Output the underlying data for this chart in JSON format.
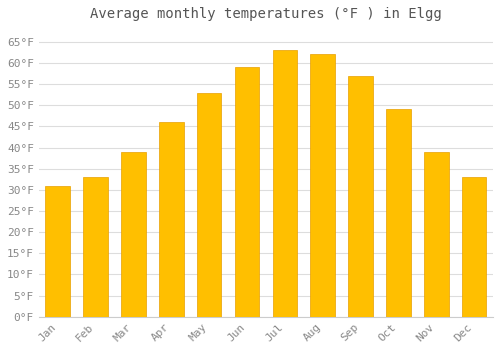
{
  "title": "Average monthly temperatures (°F ) in Elgg",
  "months": [
    "Jan",
    "Feb",
    "Mar",
    "Apr",
    "May",
    "Jun",
    "Jul",
    "Aug",
    "Sep",
    "Oct",
    "Nov",
    "Dec"
  ],
  "values": [
    31,
    33,
    39,
    46,
    53,
    59,
    63,
    62,
    57,
    49,
    39,
    33
  ],
  "bar_color_top": "#FFBF00",
  "bar_color_bottom": "#FFA500",
  "bar_edge_color": "#E8A000",
  "plot_bg_color": "#FFFFFF",
  "fig_bg_color": "#FFFFFF",
  "grid_color": "#DDDDDD",
  "ylim": [
    0,
    68
  ],
  "yticks": [
    0,
    5,
    10,
    15,
    20,
    25,
    30,
    35,
    40,
    45,
    50,
    55,
    60,
    65
  ],
  "tick_label_color": "#888888",
  "title_color": "#555555",
  "title_fontsize": 10,
  "tick_fontsize": 8,
  "bar_width": 0.65
}
